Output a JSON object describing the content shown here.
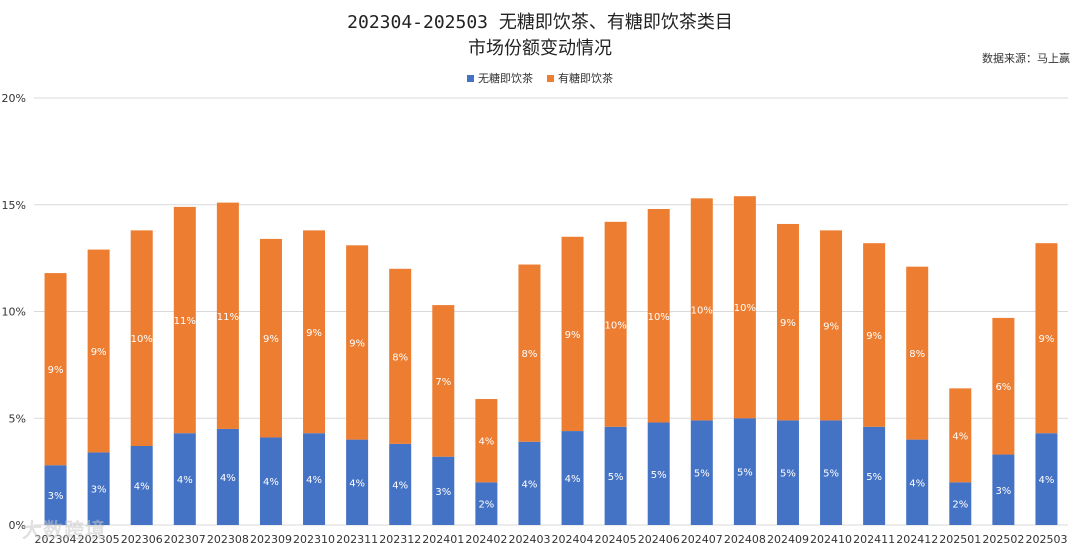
{
  "header": {
    "title_line1": "202304-202503 无糖即饮茶、有糖即饮茶类目",
    "title_line2": "市场份额变动情况",
    "source": "数据来源：马上赢"
  },
  "legend": {
    "items": [
      {
        "label": "无糖即饮茶",
        "color": "#4472c4"
      },
      {
        "label": "有糖即饮茶",
        "color": "#ed7d31"
      }
    ]
  },
  "watermark": "大数跨境",
  "chart_data": {
    "type": "bar",
    "stacked": true,
    "title": "202304-202503 无糖即饮茶、有糖即饮茶类目 市场份额变动情况",
    "xlabel": "",
    "ylabel": "",
    "ylim": [
      0,
      20
    ],
    "yticks": [
      0,
      5,
      10,
      15,
      20
    ],
    "ytick_labels": [
      "0%",
      "5%",
      "10%",
      "15%",
      "20%"
    ],
    "grid": true,
    "legend_position": "top-center",
    "categories": [
      "202304",
      "202305",
      "202306",
      "202307",
      "202308",
      "202309",
      "202310",
      "202311",
      "202312",
      "202401",
      "202402",
      "202403",
      "202404",
      "202405",
      "202406",
      "202407",
      "202408",
      "202409",
      "202410",
      "202411",
      "202412",
      "202501",
      "202502",
      "202503"
    ],
    "series": [
      {
        "name": "无糖即饮茶",
        "color": "#4472c4",
        "values": [
          2.8,
          3.4,
          3.7,
          4.3,
          4.5,
          4.1,
          4.3,
          4.0,
          3.8,
          3.2,
          2.0,
          3.9,
          4.4,
          4.6,
          4.8,
          4.9,
          5.0,
          4.9,
          4.9,
          4.6,
          4.0,
          2.0,
          3.3,
          4.3
        ],
        "labels": [
          "3%",
          "3%",
          "4%",
          "4%",
          "4%",
          "4%",
          "4%",
          "4%",
          "4%",
          "3%",
          "2%",
          "4%",
          "4%",
          "5%",
          "5%",
          "5%",
          "5%",
          "5%",
          "5%",
          "5%",
          "4%",
          "2%",
          "3%",
          "4%"
        ]
      },
      {
        "name": "有糖即饮茶",
        "color": "#ed7d31",
        "values": [
          9.0,
          9.5,
          10.1,
          10.6,
          10.6,
          9.3,
          9.5,
          9.1,
          8.2,
          7.1,
          3.9,
          8.3,
          9.1,
          9.6,
          10.0,
          10.4,
          10.4,
          9.2,
          8.9,
          8.6,
          8.1,
          4.4,
          6.4,
          8.9
        ],
        "labels": [
          "9%",
          "9%",
          "10%",
          "11%",
          "11%",
          "9%",
          "9%",
          "9%",
          "8%",
          "7%",
          "4%",
          "8%",
          "9%",
          "10%",
          "10%",
          "10%",
          "10%",
          "9%",
          "9%",
          "9%",
          "8%",
          "4%",
          "6%",
          "9%"
        ]
      }
    ]
  }
}
